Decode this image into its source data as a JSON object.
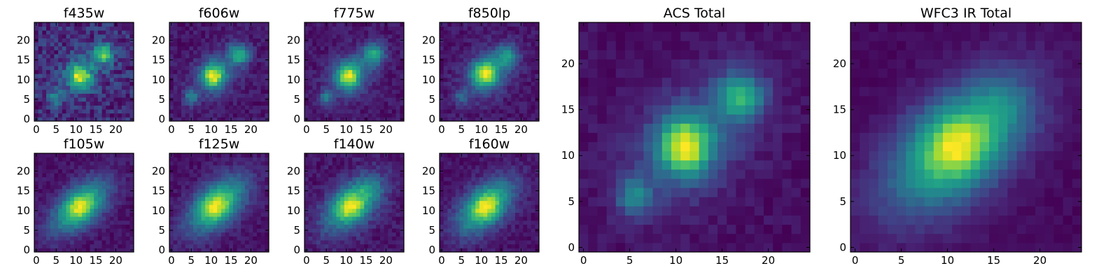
{
  "chart_data": [
    {
      "type": "heatmap",
      "title": "f435w",
      "xticks": [
        "0",
        "5",
        "10",
        "15",
        "20"
      ],
      "yticks": [
        "0",
        "5",
        "10",
        "15",
        "20"
      ],
      "xlim": [
        -0.5,
        24.5
      ],
      "ylim": [
        -0.5,
        24.5
      ],
      "grid_size": 25,
      "colormap": "viridis",
      "components": [
        {
          "x": 17,
          "y": 16.5,
          "amp": 0.75,
          "sx": 1.7,
          "sy": 1.7
        },
        {
          "x": 11,
          "y": 11,
          "amp": 0.8,
          "sx": 1.9,
          "sy": 2.0
        },
        {
          "x": 5,
          "y": 5.5,
          "amp": 0.4,
          "sx": 1.2,
          "sy": 1.2
        },
        {
          "x": 11.5,
          "y": 11.5,
          "amp": 0.25,
          "sx": 5.0,
          "sy": 3.5,
          "angle": 45
        }
      ],
      "background": 0.3,
      "noise": 0.16
    },
    {
      "type": "heatmap",
      "title": "f606w",
      "xticks": [
        "0",
        "5",
        "10",
        "15",
        "20"
      ],
      "yticks": [
        "0",
        "5",
        "10",
        "15",
        "20"
      ],
      "xlim": [
        -0.5,
        24.5
      ],
      "ylim": [
        -0.5,
        24.5
      ],
      "grid_size": 25,
      "colormap": "viridis",
      "components": [
        {
          "x": 17,
          "y": 16.5,
          "amp": 0.65,
          "sx": 1.8,
          "sy": 1.8
        },
        {
          "x": 10.5,
          "y": 11,
          "amp": 0.9,
          "sx": 2.0,
          "sy": 2.1
        },
        {
          "x": 5,
          "y": 5.5,
          "amp": 0.45,
          "sx": 1.2,
          "sy": 1.3
        },
        {
          "x": 11.5,
          "y": 11.5,
          "amp": 0.25,
          "sx": 5.2,
          "sy": 3.5,
          "angle": 45
        }
      ],
      "background": 0.12,
      "noise": 0.08
    },
    {
      "type": "heatmap",
      "title": "f775w",
      "xticks": [
        "0",
        "5",
        "10",
        "15",
        "20"
      ],
      "yticks": [
        "0",
        "5",
        "10",
        "15",
        "20"
      ],
      "xlim": [
        -0.5,
        24.5
      ],
      "ylim": [
        -0.5,
        24.5
      ],
      "grid_size": 25,
      "colormap": "viridis",
      "components": [
        {
          "x": 17,
          "y": 16.5,
          "amp": 0.6,
          "sx": 1.9,
          "sy": 1.9
        },
        {
          "x": 10.5,
          "y": 11,
          "amp": 0.9,
          "sx": 2.1,
          "sy": 2.2
        },
        {
          "x": 5,
          "y": 5.5,
          "amp": 0.4,
          "sx": 1.2,
          "sy": 1.3
        },
        {
          "x": 11.5,
          "y": 11.5,
          "amp": 0.3,
          "sx": 5.3,
          "sy": 3.6,
          "angle": 45
        }
      ],
      "background": 0.14,
      "noise": 0.08
    },
    {
      "type": "heatmap",
      "title": "f850lp",
      "xticks": [
        "0",
        "5",
        "10",
        "15",
        "20"
      ],
      "yticks": [
        "0",
        "5",
        "10",
        "15",
        "20"
      ],
      "xlim": [
        -0.5,
        24.5
      ],
      "ylim": [
        -0.5,
        24.5
      ],
      "grid_size": 25,
      "colormap": "viridis",
      "components": [
        {
          "x": 16.5,
          "y": 16,
          "amp": 0.5,
          "sx": 2.0,
          "sy": 2.0
        },
        {
          "x": 11,
          "y": 11.5,
          "amp": 0.9,
          "sx": 2.3,
          "sy": 2.3
        },
        {
          "x": 5,
          "y": 5.5,
          "amp": 0.3,
          "sx": 1.3,
          "sy": 1.3
        },
        {
          "x": 11.5,
          "y": 11.5,
          "amp": 0.3,
          "sx": 5.5,
          "sy": 3.8,
          "angle": 45
        }
      ],
      "background": 0.16,
      "noise": 0.08
    },
    {
      "type": "heatmap",
      "title": "f105w",
      "xticks": [
        "0",
        "5",
        "10",
        "15",
        "20"
      ],
      "yticks": [
        "0",
        "5",
        "10",
        "15",
        "20"
      ],
      "xlim": [
        -0.5,
        24.5
      ],
      "ylim": [
        -0.5,
        24.5
      ],
      "grid_size": 25,
      "colormap": "viridis",
      "components": [
        {
          "x": 11,
          "y": 11,
          "amp": 0.75,
          "sx": 6.0,
          "sy": 3.2,
          "angle": 42
        },
        {
          "x": 11,
          "y": 11,
          "amp": 0.3,
          "sx": 2.2,
          "sy": 2.2
        }
      ],
      "background": 0.16,
      "noise": 0.06
    },
    {
      "type": "heatmap",
      "title": "f125w",
      "xticks": [
        "0",
        "5",
        "10",
        "15",
        "20"
      ],
      "yticks": [
        "0",
        "5",
        "10",
        "15",
        "20"
      ],
      "xlim": [
        -0.5,
        24.5
      ],
      "ylim": [
        -0.5,
        24.5
      ],
      "grid_size": 25,
      "colormap": "viridis",
      "components": [
        {
          "x": 11.5,
          "y": 11.5,
          "amp": 0.75,
          "sx": 6.3,
          "sy": 3.4,
          "angle": 42
        },
        {
          "x": 11,
          "y": 11,
          "amp": 0.3,
          "sx": 2.3,
          "sy": 2.3
        }
      ],
      "background": 0.14,
      "noise": 0.06
    },
    {
      "type": "heatmap",
      "title": "f140w",
      "xticks": [
        "0",
        "5",
        "10",
        "15",
        "20"
      ],
      "yticks": [
        "0",
        "5",
        "10",
        "15",
        "20"
      ],
      "xlim": [
        -0.5,
        24.5
      ],
      "ylim": [
        -0.5,
        24.5
      ],
      "grid_size": 25,
      "colormap": "viridis",
      "components": [
        {
          "x": 11.5,
          "y": 11.5,
          "amp": 0.7,
          "sx": 6.0,
          "sy": 3.4,
          "angle": 42
        },
        {
          "x": 11,
          "y": 11,
          "amp": 0.35,
          "sx": 2.3,
          "sy": 2.3
        },
        {
          "x": 16,
          "y": 15.5,
          "amp": 0.15,
          "sx": 1.8,
          "sy": 1.8
        }
      ],
      "background": 0.15,
      "noise": 0.07
    },
    {
      "type": "heatmap",
      "title": "f160w",
      "xticks": [
        "0",
        "5",
        "10",
        "15",
        "20"
      ],
      "yticks": [
        "0",
        "5",
        "10",
        "15",
        "20"
      ],
      "xlim": [
        -0.5,
        24.5
      ],
      "ylim": [
        -0.5,
        24.5
      ],
      "grid_size": 25,
      "colormap": "viridis",
      "components": [
        {
          "x": 11,
          "y": 11,
          "amp": 0.75,
          "sx": 6.0,
          "sy": 3.3,
          "angle": 42
        },
        {
          "x": 11,
          "y": 11,
          "amp": 0.3,
          "sx": 2.2,
          "sy": 2.2
        }
      ],
      "background": 0.15,
      "noise": 0.06
    },
    {
      "type": "heatmap",
      "title": "ACS Total",
      "xticks": [
        "0",
        "5",
        "10",
        "15",
        "20"
      ],
      "yticks": [
        "0",
        "5",
        "10",
        "15",
        "20"
      ],
      "xlim": [
        -0.5,
        24.5
      ],
      "ylim": [
        -0.5,
        24.5
      ],
      "grid_size": 25,
      "colormap": "viridis",
      "components": [
        {
          "x": 17,
          "y": 16.5,
          "amp": 0.6,
          "sx": 1.8,
          "sy": 1.8
        },
        {
          "x": 11,
          "y": 11,
          "amp": 0.85,
          "sx": 1.9,
          "sy": 2.1
        },
        {
          "x": 5.5,
          "y": 5.5,
          "amp": 0.45,
          "sx": 1.3,
          "sy": 1.4
        },
        {
          "x": 11.5,
          "y": 11.5,
          "amp": 0.3,
          "sx": 5.5,
          "sy": 3.8,
          "angle": 45
        }
      ],
      "background": 0.1,
      "noise": 0.05
    },
    {
      "type": "heatmap",
      "title": "WFC3 IR Total",
      "xticks": [
        "0",
        "5",
        "10",
        "15",
        "20"
      ],
      "yticks": [
        "0",
        "5",
        "10",
        "15",
        "20"
      ],
      "xlim": [
        -0.5,
        24.5
      ],
      "ylim": [
        -0.5,
        24.5
      ],
      "grid_size": 25,
      "colormap": "viridis",
      "components": [
        {
          "x": 11,
          "y": 11,
          "amp": 0.7,
          "sx": 6.2,
          "sy": 3.5,
          "angle": 42
        },
        {
          "x": 11,
          "y": 11,
          "amp": 0.3,
          "sx": 2.3,
          "sy": 2.3
        },
        {
          "x": 16,
          "y": 15.5,
          "amp": 0.12,
          "sx": 2.0,
          "sy": 2.0
        }
      ],
      "background": 0.1,
      "noise": 0.03
    }
  ]
}
